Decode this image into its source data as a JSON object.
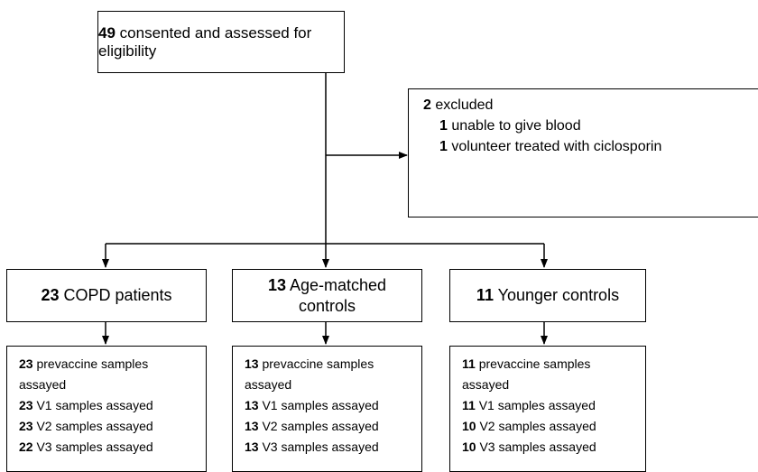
{
  "top": {
    "number": "49",
    "text": "consented and assessed for eligibility"
  },
  "excluded": {
    "number": "2",
    "text": "excluded",
    "items": [
      {
        "number": "1",
        "text": "unable to give blood"
      },
      {
        "number": "1",
        "text": "volunteer treated with ciclosporin"
      }
    ]
  },
  "groups": [
    {
      "number": "23",
      "label": "COPD patients",
      "samples": [
        {
          "number": "23",
          "text": "prevaccine samples assayed"
        },
        {
          "number": "23",
          "text": "V1 samples assayed"
        },
        {
          "number": "23",
          "text": "V2 samples assayed"
        },
        {
          "number": "22",
          "text": "V3 samples assayed"
        }
      ]
    },
    {
      "number": "13",
      "label": "Age-matched controls",
      "samples": [
        {
          "number": "13",
          "text": "prevaccine samples assayed"
        },
        {
          "number": "13",
          "text": "V1 samples assayed"
        },
        {
          "number": "13",
          "text": "V2 samples assayed"
        },
        {
          "number": "13",
          "text": "V3 samples assayed"
        }
      ]
    },
    {
      "number": "11",
      "label": "Younger controls",
      "samples": [
        {
          "number": "11",
          "text": "prevaccine samples assayed"
        },
        {
          "number": "11",
          "text": "V1 samples assayed"
        },
        {
          "number": "10",
          "text": "V2 samples assayed"
        },
        {
          "number": "10",
          "text": "V3 samples assayed"
        }
      ]
    }
  ]
}
